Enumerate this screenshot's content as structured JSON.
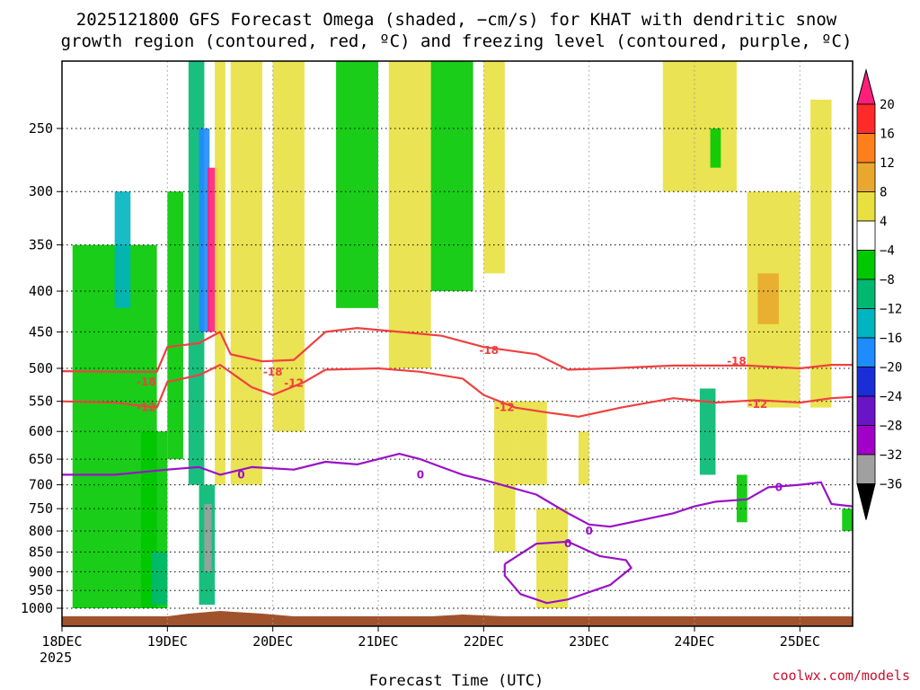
{
  "chart_data": {
    "type": "heatmap",
    "title_line1": "2025121800 GFS Forecast Omega (shaded, −cm/s) for KHAT with dendritic snow",
    "title_line2": "growth region (contoured, red, ºC) and freezing level (contoured, purple, ºC)",
    "xlabel": "Forecast Time (UTC)",
    "credit": "coolwx.com/models",
    "x_start_label": "18DEC",
    "x_start_year": "2025",
    "x_ticks": [
      {
        "label": "18DEC",
        "day": 0
      },
      {
        "label": "19DEC",
        "day": 1
      },
      {
        "label": "20DEC",
        "day": 2
      },
      {
        "label": "21DEC",
        "day": 3
      },
      {
        "label": "22DEC",
        "day": 4
      },
      {
        "label": "23DEC",
        "day": 5
      },
      {
        "label": "24DEC",
        "day": 6
      },
      {
        "label": "25DEC",
        "day": 7
      }
    ],
    "xlim_days": [
      0,
      7.5
    ],
    "y_ticks": [
      250,
      300,
      350,
      400,
      450,
      500,
      550,
      600,
      650,
      700,
      750,
      800,
      850,
      900,
      950,
      1000
    ],
    "ylim_hpa": [
      200,
      1030
    ],
    "y_scale": "log",
    "grid": true,
    "colorbar": {
      "labels": [
        "20",
        "16",
        "12",
        "8",
        "4",
        "−4",
        "−8",
        "−12",
        "−16",
        "−20",
        "−24",
        "−28",
        "−32",
        "−36"
      ],
      "colors": [
        "#ff1f7a",
        "#ff2a2a",
        "#ff7f1a",
        "#e8a830",
        "#e8e040",
        "#ffffff",
        "#00c800",
        "#00b870",
        "#00b4c0",
        "#1e8cff",
        "#1a2ed8",
        "#6a14c8",
        "#a000c8",
        "#a0a0a0",
        "#000000"
      ]
    },
    "omega_cells": [
      {
        "t": [
          0.1,
          0.9
        ],
        "p": [
          350,
          1000
        ],
        "v": -6
      },
      {
        "t": [
          0.5,
          0.65
        ],
        "p": [
          300,
          420
        ],
        "v": -14
      },
      {
        "t": [
          0.75,
          1.0
        ],
        "p": [
          600,
          1000
        ],
        "v": -8
      },
      {
        "t": [
          0.85,
          1.0
        ],
        "p": [
          850,
          990
        ],
        "v": -12
      },
      {
        "t": [
          1.0,
          1.15
        ],
        "p": [
          300,
          650
        ],
        "v": -8
      },
      {
        "t": [
          1.2,
          1.35
        ],
        "p": [
          200,
          700
        ],
        "v": -10
      },
      {
        "t": [
          1.3,
          1.4
        ],
        "p": [
          250,
          450
        ],
        "v": -20
      },
      {
        "t": [
          1.3,
          1.45
        ],
        "p": [
          700,
          990
        ],
        "v": -12
      },
      {
        "t": [
          1.35,
          1.42
        ],
        "p": [
          740,
          900
        ],
        "v": -36
      },
      {
        "t": [
          1.38,
          1.48
        ],
        "p": [
          280,
          450
        ],
        "v": 20
      },
      {
        "t": [
          1.45,
          1.55
        ],
        "p": [
          200,
          700
        ],
        "v": 6
      },
      {
        "t": [
          1.6,
          1.9
        ],
        "p": [
          200,
          700
        ],
        "v": 5
      },
      {
        "t": [
          2.0,
          2.3
        ],
        "p": [
          200,
          600
        ],
        "v": 5
      },
      {
        "t": [
          2.6,
          3.0
        ],
        "p": [
          200,
          420
        ],
        "v": -6
      },
      {
        "t": [
          3.1,
          3.5
        ],
        "p": [
          200,
          500
        ],
        "v": 5
      },
      {
        "t": [
          3.5,
          3.9
        ],
        "p": [
          200,
          400
        ],
        "v": -8
      },
      {
        "t": [
          4.0,
          4.2
        ],
        "p": [
          200,
          380
        ],
        "v": 5
      },
      {
        "t": [
          4.1,
          4.3
        ],
        "p": [
          550,
          850
        ],
        "v": 5
      },
      {
        "t": [
          4.3,
          4.6
        ],
        "p": [
          550,
          700
        ],
        "v": 6
      },
      {
        "t": [
          4.5,
          4.8
        ],
        "p": [
          750,
          1000
        ],
        "v": 5
      },
      {
        "t": [
          4.9,
          5.0
        ],
        "p": [
          600,
          700
        ],
        "v": 5
      },
      {
        "t": [
          5.7,
          6.4
        ],
        "p": [
          200,
          300
        ],
        "v": 5
      },
      {
        "t": [
          6.05,
          6.2
        ],
        "p": [
          530,
          680
        ],
        "v": -10
      },
      {
        "t": [
          6.15,
          6.25
        ],
        "p": [
          250,
          280
        ],
        "v": -8
      },
      {
        "t": [
          6.4,
          6.5
        ],
        "p": [
          680,
          780
        ],
        "v": -8
      },
      {
        "t": [
          6.5,
          7.0
        ],
        "p": [
          300,
          560
        ],
        "v": 5
      },
      {
        "t": [
          6.6,
          6.8
        ],
        "p": [
          380,
          440
        ],
        "v": 8
      },
      {
        "t": [
          7.1,
          7.3
        ],
        "p": [
          230,
          560
        ],
        "v": 5
      },
      {
        "t": [
          7.4,
          7.5
        ],
        "p": [
          750,
          800
        ],
        "v": -8
      }
    ],
    "dgz_contours": [
      {
        "label": "-18",
        "label_positions": [
          [
            0.8,
            520
          ],
          [
            2.0,
            505
          ],
          [
            4.05,
            475
          ],
          [
            6.4,
            490
          ]
        ],
        "points": [
          [
            0,
            504
          ],
          [
            0.5,
            505
          ],
          [
            0.9,
            505
          ],
          [
            1.0,
            470
          ],
          [
            1.3,
            465
          ],
          [
            1.5,
            450
          ],
          [
            1.6,
            480
          ],
          [
            1.9,
            490
          ],
          [
            2.2,
            488
          ],
          [
            2.5,
            450
          ],
          [
            2.8,
            445
          ],
          [
            3.2,
            450
          ],
          [
            3.6,
            455
          ],
          [
            4.0,
            470
          ],
          [
            4.5,
            480
          ],
          [
            4.8,
            502
          ],
          [
            5.2,
            500
          ],
          [
            5.8,
            496
          ],
          [
            6.2,
            496
          ],
          [
            6.5,
            496
          ],
          [
            7.0,
            500
          ],
          [
            7.3,
            495
          ],
          [
            7.5,
            495
          ]
        ]
      },
      {
        "label": "-12",
        "label_positions": [
          [
            0.8,
            560
          ],
          [
            2.2,
            522
          ],
          [
            4.2,
            560
          ],
          [
            6.6,
            555
          ]
        ],
        "points": [
          [
            0,
            550
          ],
          [
            0.5,
            552
          ],
          [
            0.9,
            560
          ],
          [
            1.0,
            520
          ],
          [
            1.3,
            510
          ],
          [
            1.5,
            495
          ],
          [
            1.8,
            528
          ],
          [
            2.0,
            540
          ],
          [
            2.3,
            520
          ],
          [
            2.5,
            502
          ],
          [
            3.0,
            500
          ],
          [
            3.4,
            505
          ],
          [
            3.8,
            515
          ],
          [
            4.0,
            540
          ],
          [
            4.3,
            560
          ],
          [
            4.6,
            568
          ],
          [
            4.9,
            575
          ],
          [
            5.3,
            560
          ],
          [
            5.8,
            545
          ],
          [
            6.2,
            552
          ],
          [
            6.6,
            548
          ],
          [
            7.0,
            552
          ],
          [
            7.3,
            545
          ],
          [
            7.5,
            543
          ]
        ]
      }
    ],
    "freezing_contours": [
      {
        "label": "0",
        "label_positions": [
          [
            1.7,
            680
          ],
          [
            3.4,
            680
          ],
          [
            5.0,
            800
          ],
          [
            6.8,
            705
          ]
        ],
        "points": [
          [
            0,
            680
          ],
          [
            0.5,
            680
          ],
          [
            1.0,
            670
          ],
          [
            1.3,
            665
          ],
          [
            1.5,
            680
          ],
          [
            1.8,
            665
          ],
          [
            2.2,
            670
          ],
          [
            2.5,
            655
          ],
          [
            2.8,
            660
          ],
          [
            3.2,
            640
          ],
          [
            3.4,
            650
          ],
          [
            3.6,
            665
          ],
          [
            3.8,
            680
          ],
          [
            4.0,
            690
          ],
          [
            4.5,
            720
          ],
          [
            4.8,
            760
          ],
          [
            5.0,
            785
          ],
          [
            5.2,
            790
          ],
          [
            5.5,
            775
          ],
          [
            5.8,
            760
          ],
          [
            6.0,
            745
          ],
          [
            6.2,
            735
          ],
          [
            6.5,
            730
          ],
          [
            6.7,
            705
          ],
          [
            7.0,
            700
          ],
          [
            7.2,
            695
          ],
          [
            7.3,
            740
          ],
          [
            7.5,
            745
          ]
        ]
      },
      {
        "label": "0",
        "label_positions": [
          [
            4.8,
            830
          ]
        ],
        "points": [
          [
            4.2,
            880
          ],
          [
            4.5,
            830
          ],
          [
            4.8,
            825
          ],
          [
            5.1,
            860
          ],
          [
            5.35,
            870
          ],
          [
            5.4,
            890
          ],
          [
            5.2,
            935
          ],
          [
            4.8,
            975
          ],
          [
            4.6,
            985
          ],
          [
            4.35,
            960
          ],
          [
            4.2,
            910
          ],
          [
            4.2,
            880
          ]
        ]
      }
    ]
  }
}
